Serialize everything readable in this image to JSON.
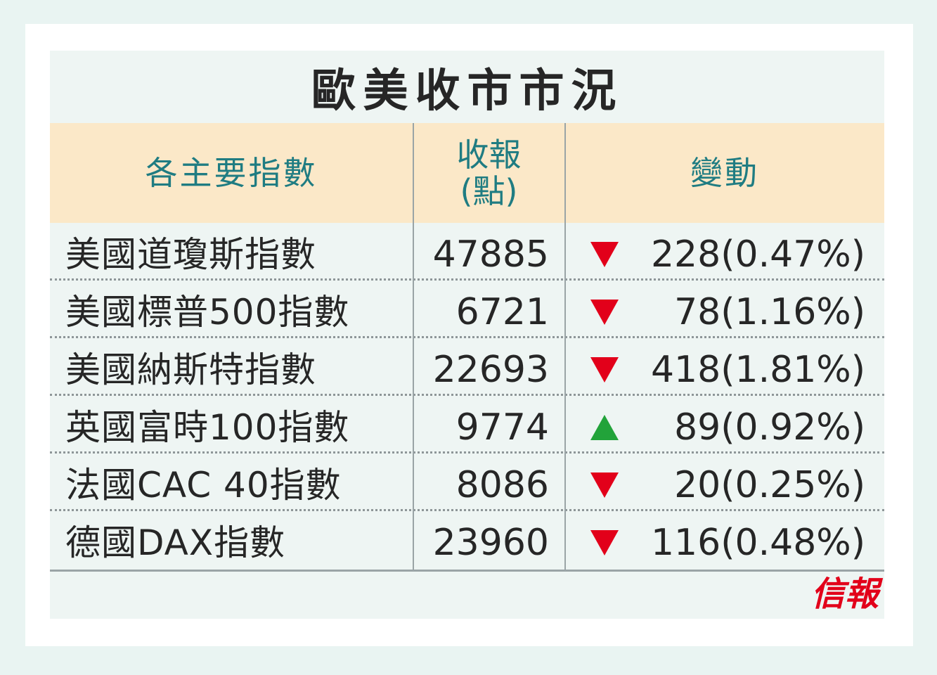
{
  "title": "歐美收市市況",
  "header": {
    "col_index": "各主要指數",
    "col_close_line1": "收報",
    "col_close_line2": "(點)",
    "col_change": "變動"
  },
  "rows": [
    {
      "name": "美國道瓊斯指數",
      "close": "47885",
      "direction": "down",
      "change": "228(0.47%)"
    },
    {
      "name": "美國標普500指數",
      "close": "6721",
      "direction": "down",
      "change": "78(1.16%)"
    },
    {
      "name": "美國納斯特指數",
      "close": "22693",
      "direction": "down",
      "change": "418(1.81%)"
    },
    {
      "name": "英國富時100指數",
      "close": "9774",
      "direction": "up",
      "change": "89(0.92%)"
    },
    {
      "name": "法國CAC 40指數",
      "close": "8086",
      "direction": "down",
      "change": "20(0.25%)"
    },
    {
      "name": "德國DAX指數",
      "close": "23960",
      "direction": "down",
      "change": "116(0.48%)"
    }
  ],
  "brand": "信報",
  "colors": {
    "down": "#e2001a",
    "up": "#22a33a",
    "header_text": "#1f7c82",
    "header_bg": "#fbe8c8",
    "brand": "#e2001a"
  }
}
